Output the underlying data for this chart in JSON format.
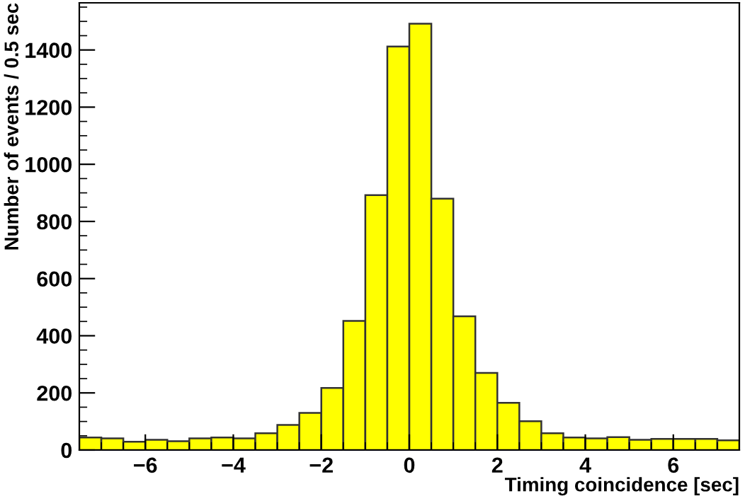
{
  "chart_data": {
    "type": "histogram",
    "xlabel": "Timing coincidence [sec]",
    "ylabel": "Number of events / 0.5 sec",
    "bins": [
      -7.5,
      -7,
      -6.5,
      -6,
      -5.5,
      -5,
      -4.5,
      -4,
      -3.5,
      -3,
      -2.5,
      -2,
      -1.5,
      -1,
      -0.5,
      0,
      0.5,
      1,
      1.5,
      2,
      2.5,
      3,
      3.5,
      4,
      4.5,
      5,
      5.5,
      6,
      6.5,
      7,
      7.5
    ],
    "values": [
      44,
      41,
      29,
      36,
      31,
      41,
      44,
      41,
      59,
      88,
      130,
      217,
      452,
      892,
      1412,
      1492,
      880,
      468,
      270,
      165,
      101,
      59,
      44,
      41,
      45,
      36,
      39,
      39,
      39,
      34
    ],
    "color": "#ffff00",
    "xlim": [
      -7.5,
      7.5
    ],
    "xticks": [
      {
        "value": -6,
        "label": "−6"
      },
      {
        "value": -4,
        "label": "−4"
      },
      {
        "value": -2,
        "label": "−2"
      },
      0,
      2,
      4,
      6
    ],
    "ylim": [
      0,
      1565
    ],
    "yticks": [
      0,
      200,
      400,
      600,
      800,
      1000,
      1200,
      1400
    ],
    "grid": false,
    "legend": false
  }
}
